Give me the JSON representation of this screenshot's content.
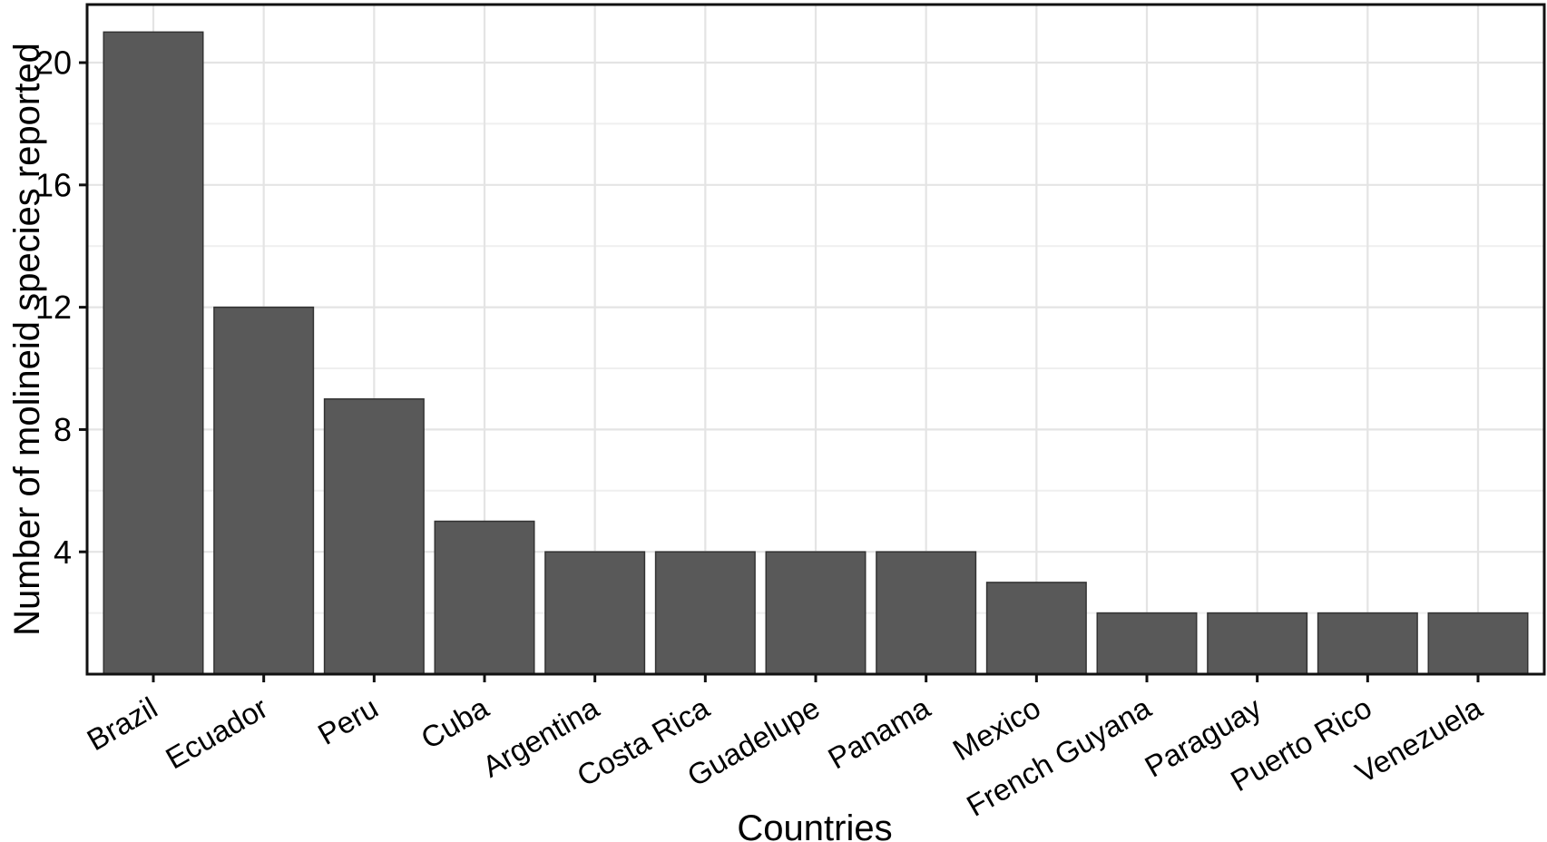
{
  "figure": {
    "background": "#ffffff"
  },
  "chart_data": {
    "type": "bar",
    "title": "",
    "xlabel": "Countries",
    "ylabel": "Number of molineid species reported",
    "categories": [
      "Brazil",
      "Ecuador",
      "Peru",
      "Cuba",
      "Argentina",
      "Costa Rica",
      "Guadelupe",
      "Panama",
      "Mexico",
      "French Guyana",
      "Paraguay",
      "Puerto Rico",
      "Venezuela"
    ],
    "values": [
      21,
      12,
      9,
      5,
      4,
      4,
      4,
      4,
      3,
      2,
      2,
      2,
      2
    ],
    "yticks": [
      4,
      8,
      12,
      16,
      20
    ],
    "yticks_minor": [
      2,
      6,
      10,
      14,
      18
    ],
    "ylim": [
      0,
      21.9
    ],
    "grid": "major+minor horizontal, major vertical at category centers",
    "legend": "none",
    "x_label_angle_deg": 30,
    "colors": {
      "bar_fill": "#595959",
      "bar_stroke": "#333333",
      "grid_major": "#e4e4e4",
      "grid_minor": "#efefef",
      "panel_border": "#111111",
      "tick": "#111111",
      "text": "#000000",
      "panel_background": "#ffffff"
    }
  }
}
